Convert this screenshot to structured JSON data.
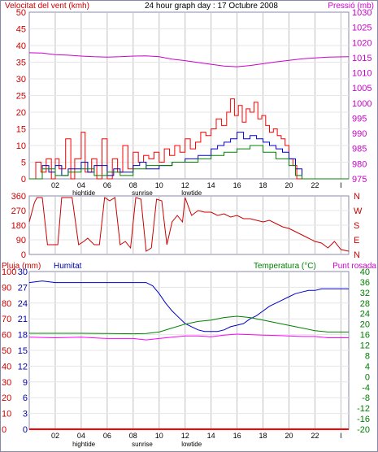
{
  "header": {
    "wind_label": "Velocitat del vent (kmh)",
    "center_title": "24 hour graph day : 17 Octubre 2008",
    "pressure_label": "Pressió (mb)",
    "rain_label": "Pluja (mm)",
    "humidity_label": "Humitat",
    "temperature_label": "Temperatura (°C)",
    "dewpoint_label": "Punt rosada"
  },
  "colors": {
    "wind": "#ff0000",
    "gust": "#ff0000",
    "wind_avg": "#0000cc",
    "wind_green": "#008000",
    "pressure": "#cc00cc",
    "direction": "#cc0000",
    "humidity": "#0000cc",
    "temperature": "#008000",
    "dewpoint": "#ff00ff",
    "rain": "#ff0000",
    "grid": "#c0c0c0",
    "frame_border": "#8888aa"
  },
  "x_axis": {
    "ticks": [
      "02",
      "04",
      "06",
      "08",
      "10",
      "12",
      "14",
      "16",
      "18",
      "20",
      "22",
      "I"
    ],
    "tick_hours": [
      2,
      4,
      6,
      8,
      10,
      12,
      14,
      16,
      18,
      20,
      22,
      24
    ],
    "events_top": [
      {
        "label": "hightide",
        "hour": 4.2
      },
      {
        "label": "sunrise",
        "hour": 8.7
      },
      {
        "label": "lowtide",
        "hour": 12.5
      }
    ],
    "events_bottom": [
      {
        "label": "hightide",
        "hour": 4.2
      },
      {
        "label": "sunrise",
        "hour": 8.7
      },
      {
        "label": "lowtide",
        "hour": 12.5
      }
    ]
  },
  "chart_data": [
    {
      "type": "line",
      "name": "wind_pressure",
      "x_range": [
        0,
        24.6
      ],
      "left_axis": {
        "ticks": [
          "0",
          "5",
          "10",
          "15",
          "20",
          "25",
          "30",
          "35",
          "40",
          "45",
          "50"
        ],
        "range": [
          0,
          50
        ]
      },
      "right_axis": {
        "ticks": [
          "975",
          "980",
          "985",
          "990",
          "995",
          "1000",
          "1005",
          "1010",
          "1015",
          "1020",
          "1025",
          "1030"
        ],
        "range": [
          975,
          1030
        ]
      },
      "series": [
        {
          "name": "gust",
          "axis": "left",
          "x": [
            0,
            0.5,
            0.9,
            1.3,
            1.7,
            2.0,
            2.3,
            2.8,
            3.2,
            3.5,
            4.0,
            4.3,
            4.8,
            5.2,
            5.6,
            6.0,
            6.4,
            6.8,
            7.2,
            7.6,
            8.0,
            8.4,
            8.8,
            9.2,
            9.6,
            10.0,
            10.4,
            10.8,
            11.2,
            11.6,
            12.0,
            12.4,
            12.8,
            13.2,
            13.6,
            14.0,
            14.4,
            14.8,
            15.2,
            15.5,
            15.8,
            16.1,
            16.4,
            16.7,
            17.0,
            17.3,
            17.6,
            17.9,
            18.2,
            18.5,
            18.8,
            19.1,
            19.4,
            19.7,
            20.0,
            20.3,
            20.6,
            21.0,
            24.6
          ],
          "y": [
            0,
            5,
            2,
            6,
            0,
            6,
            3,
            12,
            0,
            6,
            14,
            2,
            6,
            0,
            12,
            0,
            6,
            2,
            10,
            3,
            8,
            5,
            7,
            6,
            8,
            5,
            9,
            7,
            10,
            8,
            12,
            9,
            11,
            14,
            13,
            15,
            18,
            16,
            20,
            24,
            19,
            22,
            17,
            21,
            20,
            23,
            18,
            19,
            16,
            14,
            15,
            13,
            12,
            10,
            6,
            4,
            0,
            0,
            0
          ]
        },
        {
          "name": "wind_avg",
          "axis": "left",
          "x": [
            0,
            1.0,
            1.5,
            2.0,
            2.5,
            3.0,
            4.0,
            4.5,
            5.0,
            6.0,
            6.5,
            7.0,
            8.0,
            8.5,
            9.0,
            10.0,
            11.0,
            12.0,
            13.0,
            14.0,
            14.5,
            15.0,
            15.5,
            16.0,
            16.5,
            17.0,
            17.5,
            18.0,
            18.5,
            19.0,
            19.5,
            20.0,
            20.5,
            21.0,
            24.6
          ],
          "y": [
            0,
            4,
            2,
            4,
            1,
            3,
            5,
            2,
            4,
            1,
            3,
            2,
            4,
            5,
            3,
            4,
            5,
            6,
            7,
            9,
            10,
            11,
            12,
            14,
            12,
            13,
            12,
            11,
            10,
            9,
            8,
            6,
            3,
            0,
            0
          ]
        },
        {
          "name": "wind_green",
          "axis": "left",
          "x": [
            0,
            1.0,
            2.0,
            3.0,
            4.0,
            5.0,
            6.0,
            7.0,
            8.0,
            9.0,
            10.0,
            11.0,
            12.0,
            13.0,
            14.0,
            15.0,
            16.0,
            17.0,
            18.0,
            19.0,
            20.0,
            20.5,
            21.0,
            24.6
          ],
          "y": [
            0,
            3,
            1,
            2,
            3,
            1,
            2,
            1,
            3,
            4,
            4,
            5,
            5,
            6,
            7,
            8,
            9,
            10,
            8,
            6,
            4,
            1,
            0,
            0
          ]
        },
        {
          "name": "pressure",
          "axis": "right",
          "x": [
            0,
            1,
            2,
            3,
            4,
            5,
            6,
            7,
            8,
            9,
            10,
            11,
            12,
            13,
            14,
            15,
            16,
            17,
            18,
            19,
            20,
            21,
            22,
            23,
            24.6
          ],
          "y": [
            1016.6,
            1016.5,
            1016.0,
            1015.8,
            1015.5,
            1015.3,
            1015.2,
            1015.3,
            1015.5,
            1015.6,
            1015.3,
            1014.5,
            1014.0,
            1013.4,
            1012.8,
            1012.2,
            1012.0,
            1012.4,
            1013.0,
            1013.6,
            1014.1,
            1014.6,
            1014.9,
            1015.2,
            1015.3
          ]
        }
      ]
    },
    {
      "type": "line",
      "name": "wind_direction",
      "x_range": [
        0,
        24.6
      ],
      "left_axis": {
        "ticks": [
          "360",
          "270",
          "180",
          "90",
          "0"
        ],
        "range": [
          0,
          360
        ]
      },
      "right_axis": {
        "ticks": [
          "N",
          "W",
          "S",
          "E",
          "N"
        ]
      },
      "series": [
        {
          "name": "direction",
          "x": [
            0,
            0.4,
            0.6,
            1.0,
            1.4,
            2.2,
            2.5,
            3.3,
            3.8,
            4.2,
            4.5,
            5.0,
            5.4,
            5.8,
            6.2,
            6.6,
            7.0,
            7.4,
            7.8,
            8.2,
            8.6,
            9.0,
            9.4,
            9.8,
            10.2,
            10.6,
            11.0,
            11.4,
            11.8,
            12.0,
            12.5,
            13.0,
            13.5,
            14.0,
            14.5,
            15.0,
            15.5,
            16.0,
            16.5,
            17.0,
            17.5,
            18.0,
            18.5,
            19.0,
            19.5,
            20.0,
            20.5,
            21.0,
            21.5,
            22.0,
            22.5,
            23.0,
            23.5,
            24.0,
            24.6
          ],
          "y": [
            200,
            320,
            350,
            350,
            60,
            60,
            350,
            350,
            60,
            80,
            100,
            60,
            60,
            350,
            330,
            350,
            60,
            80,
            40,
            350,
            340,
            20,
            40,
            340,
            330,
            60,
            200,
            240,
            200,
            350,
            240,
            270,
            260,
            260,
            240,
            250,
            230,
            240,
            220,
            220,
            210,
            200,
            210,
            190,
            170,
            160,
            140,
            120,
            100,
            80,
            70,
            40,
            80,
            30,
            20
          ]
        }
      ]
    },
    {
      "type": "line",
      "name": "rain_humidity_temperature",
      "x_range": [
        0,
        24.6
      ],
      "left_axis": {
        "ticks": [
          "0",
          "10",
          "20",
          "30",
          "40",
          "50",
          "60",
          "70",
          "80",
          "90",
          "100"
        ],
        "range": [
          0,
          100
        ]
      },
      "rain_axis": {
        "ticks": [
          "0",
          "3",
          "6",
          "9",
          "12",
          "15",
          "18",
          "21",
          "24",
          "27",
          "30"
        ],
        "range": [
          0,
          30
        ]
      },
      "right_axis": {
        "ticks": [
          "-20",
          "-16",
          "-12",
          "-8",
          "-4",
          "0",
          "4",
          "8",
          "12",
          "16",
          "20",
          "24",
          "28",
          "32",
          "36",
          "40"
        ],
        "range": [
          -20,
          40
        ]
      },
      "series": [
        {
          "name": "humidity",
          "axis": "left",
          "x": [
            0,
            1,
            2,
            3,
            4,
            5,
            6,
            7,
            8,
            9,
            9.5,
            10,
            10.5,
            11,
            11.5,
            12,
            12.5,
            13,
            13.5,
            14,
            14.5,
            15,
            15.5,
            16,
            16.5,
            17,
            17.5,
            18,
            18.5,
            19,
            19.5,
            20,
            20.5,
            21,
            21.5,
            22,
            22.5,
            23,
            24,
            24.6
          ],
          "y": [
            93,
            94,
            93,
            93,
            93,
            93,
            93,
            93,
            93,
            93,
            91,
            86,
            80,
            75,
            71,
            67,
            65,
            63,
            62,
            62,
            62,
            63,
            65,
            66,
            67,
            70,
            72,
            75,
            78,
            80,
            82,
            84,
            86,
            87,
            88,
            88,
            89,
            89,
            89,
            89
          ]
        },
        {
          "name": "temperature",
          "axis": "right",
          "x": [
            0,
            2,
            4,
            6,
            8,
            9,
            10,
            11,
            12,
            13,
            14,
            15,
            16,
            17,
            18,
            19,
            20,
            21,
            22,
            23,
            24,
            24.6
          ],
          "y": [
            16.5,
            16.5,
            16.5,
            16.4,
            16.3,
            16.4,
            17,
            18.5,
            20,
            21,
            21.5,
            22.5,
            23,
            22.5,
            21.5,
            20.5,
            19.5,
            18.5,
            17.5,
            17,
            17,
            17
          ]
        },
        {
          "name": "dewpoint",
          "axis": "right",
          "x": [
            0,
            2,
            4,
            6,
            8,
            9,
            10,
            11,
            12,
            13,
            14,
            15,
            16,
            17,
            18,
            19,
            20,
            21,
            22,
            23,
            24,
            24.6
          ],
          "y": [
            15,
            14.8,
            15,
            14.5,
            14.5,
            14.0,
            14.5,
            15,
            15.5,
            15.5,
            15.2,
            15.8,
            16.2,
            16,
            15.8,
            15.7,
            15.5,
            15.3,
            15.3,
            14.8,
            14.8,
            14.8
          ]
        },
        {
          "name": "rain",
          "axis": "rain",
          "x": [
            0,
            24.6
          ],
          "y": [
            0,
            0
          ]
        }
      ]
    }
  ]
}
